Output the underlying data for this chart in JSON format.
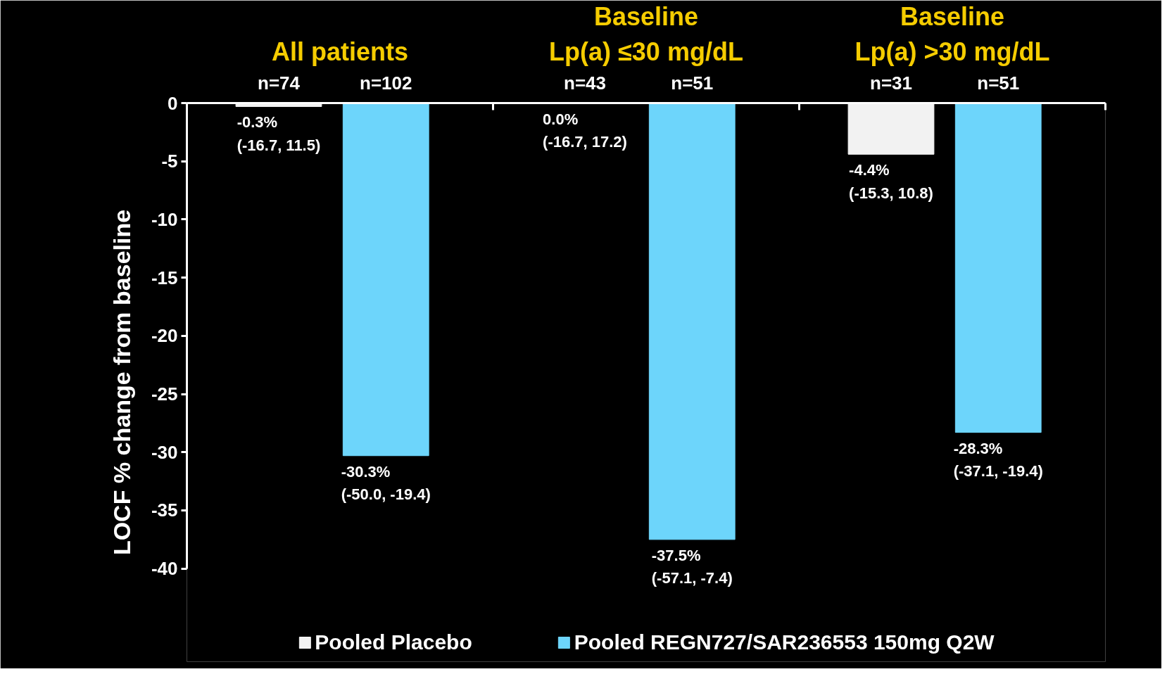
{
  "chart_data": {
    "type": "bar",
    "ylabel": "LOCF % change from baseline",
    "categories": [
      "All patients",
      "Baseline\nLp(a) ≤30 mg/dL",
      "Baseline\nLp(a) >30 mg/dL"
    ],
    "series": [
      {
        "name": "Pooled Placebo",
        "color": "#f2f2f2",
        "values": [
          -0.3,
          0.0,
          -4.4
        ],
        "value_labels": [
          "-0.3%\n(-16.7, 11.5)",
          "0.0%\n(-16.7, 17.2)",
          "-4.4%\n(-15.3, 10.8)"
        ]
      },
      {
        "name": "Pooled REGN727/SAR236553 150mg Q2W",
        "color": "#6dd5fb",
        "values": [
          -30.3,
          -37.5,
          -28.3
        ],
        "value_labels": [
          "-30.3%\n(-50.0, -19.4)",
          "-37.5%\n(-57.1, -7.4)",
          "-28.3%\n(-37.1, -19.4)"
        ]
      }
    ],
    "ylim": [
      -40,
      0
    ],
    "yticks": [
      0,
      -5,
      -10,
      -15,
      -20,
      -25,
      -30,
      -35,
      -40
    ],
    "annotations": [
      "n=74",
      "n=102",
      "n=43",
      "n=51",
      "n=31",
      "n=51"
    ],
    "grid": false,
    "legend": "bottom"
  }
}
